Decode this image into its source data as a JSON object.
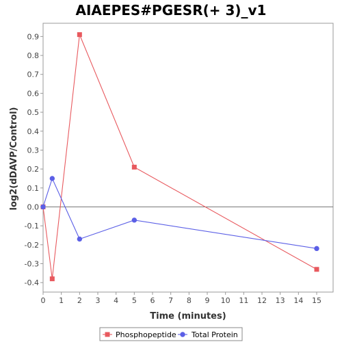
{
  "chart_data": {
    "type": "line",
    "title": "AIAEPES#PGESR(+ 3)_v1",
    "xlabel": "Time (minutes)",
    "ylabel": "log2(dDAVP/Control)",
    "xlim": [
      0,
      15.9
    ],
    "ylim": [
      -0.45,
      0.97
    ],
    "x_ticks": [
      0,
      1,
      2,
      3,
      4,
      5,
      6,
      7,
      8,
      9,
      10,
      11,
      12,
      13,
      14,
      15
    ],
    "y_ticks": [
      -0.4,
      -0.3,
      -0.2,
      -0.1,
      0.0,
      0.1,
      0.2,
      0.3,
      0.4,
      0.5,
      0.6,
      0.7,
      0.8,
      0.9
    ],
    "x_tick_labels": [
      "0",
      "1",
      "2",
      "3",
      "4",
      "5",
      "6",
      "7",
      "8",
      "9",
      "10",
      "11",
      "12",
      "13",
      "14",
      "15"
    ],
    "y_tick_labels": [
      "-0.4",
      "-0.3",
      "-0.2",
      "-0.1",
      "0.0",
      "0.1",
      "0.2",
      "0.3",
      "0.4",
      "0.5",
      "0.6",
      "0.7",
      "0.8",
      "0.9"
    ],
    "zero_line": true,
    "grid": false,
    "legend_position": "bottom",
    "series": [
      {
        "name": "Phosphopeptide",
        "color": "#e8595e",
        "marker": "square",
        "x": [
          0,
          0.5,
          2,
          5,
          15
        ],
        "y": [
          0.0,
          -0.38,
          0.91,
          0.21,
          -0.33
        ]
      },
      {
        "name": "Total Protein",
        "color": "#5b5fe6",
        "marker": "circle",
        "x": [
          0,
          0.5,
          2,
          5,
          15
        ],
        "y": [
          0.0,
          0.15,
          -0.17,
          -0.07,
          -0.22
        ]
      }
    ]
  }
}
